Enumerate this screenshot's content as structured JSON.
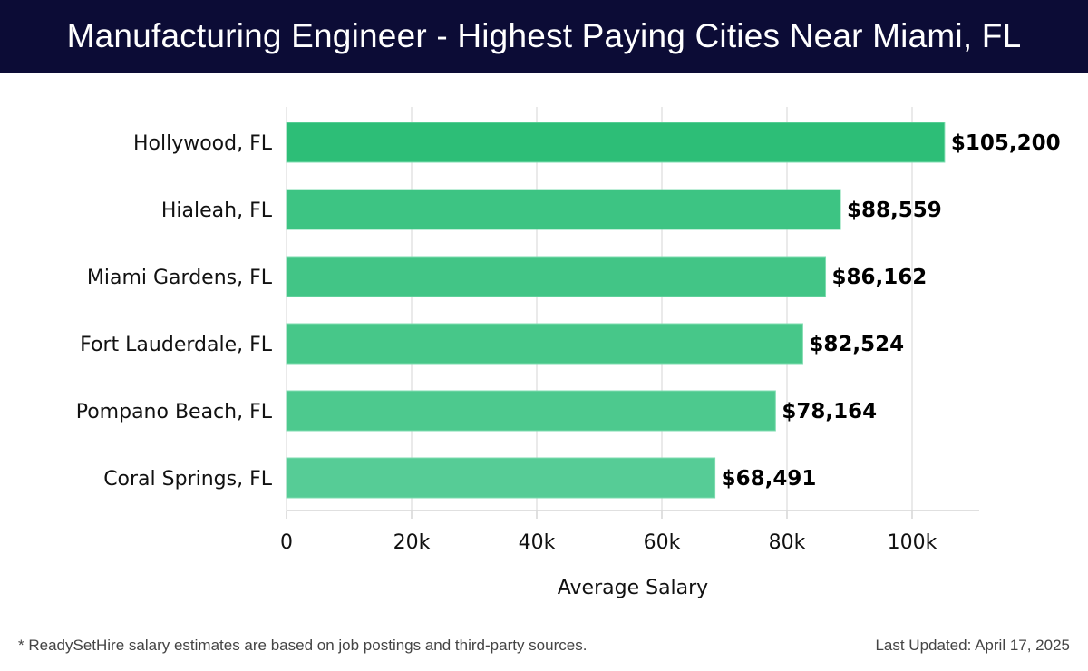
{
  "header": {
    "title": "Manufacturing Engineer - Highest Paying Cities Near Miami, FL"
  },
  "footer": {
    "note": "* ReadySetHire salary estimates are based on job postings and third-party sources.",
    "updated": "Last Updated: April 17, 2025"
  },
  "chart_data": {
    "type": "bar",
    "orientation": "horizontal",
    "title": "Manufacturing Engineer - Highest Paying Cities Near Miami, FL",
    "xlabel": "Average Salary",
    "ylabel": "",
    "categories": [
      "Hollywood, FL",
      "Hialeah, FL",
      "Miami Gardens, FL",
      "Fort Lauderdale, FL",
      "Pompano Beach, FL",
      "Coral Springs, FL"
    ],
    "values": [
      105200,
      88559,
      86162,
      82524,
      78164,
      68491
    ],
    "data_labels": [
      "$105,200",
      "$88,559",
      "$86,162",
      "$82,524",
      "$78,164",
      "$68,491"
    ],
    "xlim": [
      0,
      110000
    ],
    "xticks": [
      0,
      20000,
      40000,
      60000,
      80000,
      100000
    ],
    "xtick_labels": [
      "0",
      "20k",
      "40k",
      "60k",
      "80k",
      "100k"
    ],
    "grid": true,
    "bar_colors": [
      "#2dbe77",
      "#3dc483",
      "#42c586",
      "#47c789",
      "#4dc98e",
      "#56cc96"
    ]
  }
}
